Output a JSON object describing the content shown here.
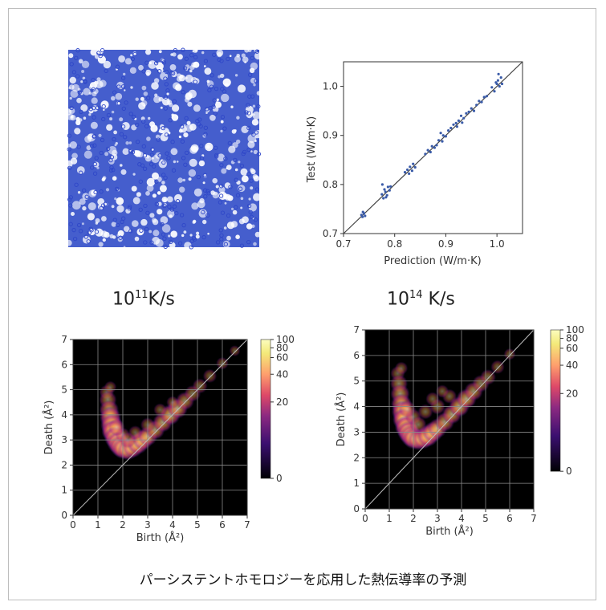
{
  "caption": "パーシステントホモロジーを応用した熱伝導率の予測",
  "rate_labels": [
    {
      "mantissa": "10",
      "exponent": "11",
      "unit": "K/s"
    },
    {
      "mantissa": "10",
      "exponent": "14",
      "unit": " K/s"
    }
  ],
  "colors": {
    "structure_blue": "#2f47c8",
    "scatter_point": "#3a5ba8",
    "heatmap_background": "#000000",
    "grid": "#8a8a8a"
  },
  "chart_data": [
    {
      "type": "scatter",
      "title": "",
      "xlabel": "Prediction (W/m·K)",
      "ylabel": "Test (W/m·K)",
      "xlim": [
        0.7,
        1.05
      ],
      "ylim": [
        0.7,
        1.05
      ],
      "xticks": [
        "0.7",
        "0.8",
        "0.9",
        "1.0"
      ],
      "yticks": [
        "0.7",
        "0.8",
        "0.9",
        "1.0"
      ],
      "reference_line": "y = x",
      "points": [
        [
          0.735,
          0.738
        ],
        [
          0.737,
          0.734
        ],
        [
          0.74,
          0.741
        ],
        [
          0.742,
          0.736
        ],
        [
          0.738,
          0.744
        ],
        [
          0.775,
          0.78
        ],
        [
          0.778,
          0.772
        ],
        [
          0.78,
          0.79
        ],
        [
          0.782,
          0.785
        ],
        [
          0.785,
          0.778
        ],
        [
          0.787,
          0.795
        ],
        [
          0.79,
          0.788
        ],
        [
          0.776,
          0.8
        ],
        [
          0.792,
          0.796
        ],
        [
          0.783,
          0.774
        ],
        [
          0.82,
          0.825
        ],
        [
          0.825,
          0.83
        ],
        [
          0.828,
          0.822
        ],
        [
          0.83,
          0.836
        ],
        [
          0.834,
          0.828
        ],
        [
          0.836,
          0.842
        ],
        [
          0.84,
          0.835
        ],
        [
          0.86,
          0.862
        ],
        [
          0.865,
          0.87
        ],
        [
          0.87,
          0.866
        ],
        [
          0.873,
          0.878
        ],
        [
          0.878,
          0.875
        ],
        [
          0.882,
          0.88
        ],
        [
          0.886,
          0.89
        ],
        [
          0.89,
          0.905
        ],
        [
          0.893,
          0.888
        ],
        [
          0.895,
          0.9
        ],
        [
          0.9,
          0.898
        ],
        [
          0.905,
          0.91
        ],
        [
          0.91,
          0.915
        ],
        [
          0.915,
          0.922
        ],
        [
          0.92,
          0.925
        ],
        [
          0.922,
          0.918
        ],
        [
          0.925,
          0.93
        ],
        [
          0.93,
          0.94
        ],
        [
          0.932,
          0.926
        ],
        [
          0.935,
          0.935
        ],
        [
          0.94,
          0.945
        ],
        [
          0.945,
          0.948
        ],
        [
          0.95,
          0.955
        ],
        [
          0.955,
          0.95
        ],
        [
          0.96,
          0.962
        ],
        [
          0.965,
          0.97
        ],
        [
          0.97,
          0.968
        ],
        [
          0.975,
          0.978
        ],
        [
          0.98,
          0.98
        ],
        [
          0.99,
          0.998
        ],
        [
          0.995,
          0.99
        ],
        [
          1.0,
          1.005
        ],
        [
          1.002,
          1.012
        ],
        [
          1.005,
          1.0
        ],
        [
          1.008,
          1.018
        ],
        [
          1.01,
          1.005
        ],
        [
          1.003,
          1.025
        ],
        [
          0.998,
          1.008
        ]
      ]
    },
    {
      "type": "heatmap",
      "title": "",
      "xlabel": "Birth (Å²)",
      "ylabel": "Death (Å²)",
      "xlim": [
        0,
        7
      ],
      "ylim": [
        0,
        7
      ],
      "xticks": [
        "0",
        "1",
        "2",
        "3",
        "4",
        "5",
        "6",
        "7"
      ],
      "yticks": [
        "0",
        "1",
        "2",
        "3",
        "4",
        "5",
        "6",
        "7"
      ],
      "colorbar_ticks": [
        "0",
        "20",
        "40",
        "60",
        "80",
        "100"
      ],
      "colorbar_scale": "log",
      "grid": true,
      "diagonal_line": "y = x",
      "density_bins": [
        [
          1.35,
          4.9,
          10
        ],
        [
          1.4,
          4.6,
          25
        ],
        [
          1.45,
          4.2,
          45
        ],
        [
          1.5,
          3.9,
          70
        ],
        [
          1.55,
          3.6,
          90
        ],
        [
          1.6,
          3.35,
          100
        ],
        [
          1.7,
          3.1,
          95
        ],
        [
          1.8,
          2.9,
          85
        ],
        [
          1.9,
          2.75,
          70
        ],
        [
          2.0,
          2.65,
          60
        ],
        [
          2.2,
          2.6,
          55
        ],
        [
          2.4,
          2.7,
          60
        ],
        [
          2.6,
          2.85,
          70
        ],
        [
          2.8,
          3.0,
          55
        ],
        [
          3.0,
          3.15,
          45
        ],
        [
          3.3,
          3.4,
          40
        ],
        [
          3.6,
          3.7,
          45
        ],
        [
          3.9,
          4.0,
          60
        ],
        [
          4.2,
          4.25,
          50
        ],
        [
          4.5,
          4.55,
          30
        ],
        [
          4.8,
          4.85,
          18
        ],
        [
          5.1,
          5.15,
          12
        ],
        [
          5.5,
          5.55,
          8
        ],
        [
          6.0,
          6.05,
          5
        ],
        [
          6.5,
          6.55,
          3
        ],
        [
          1.5,
          5.1,
          5
        ],
        [
          2.0,
          3.2,
          10
        ],
        [
          2.5,
          3.3,
          8
        ],
        [
          3.0,
          3.6,
          10
        ],
        [
          3.5,
          4.2,
          6
        ],
        [
          4.0,
          4.5,
          5
        ],
        [
          2.2,
          3.0,
          15
        ],
        [
          1.75,
          3.5,
          20
        ]
      ]
    },
    {
      "type": "heatmap",
      "title": "",
      "xlabel": "Birth (Å²)",
      "ylabel": "Death (Å²)",
      "xlim": [
        0,
        7
      ],
      "ylim": [
        0,
        7
      ],
      "xticks": [
        "0",
        "1",
        "2",
        "3",
        "4",
        "5",
        "6",
        "7"
      ],
      "yticks": [
        "0",
        "1",
        "2",
        "3",
        "4",
        "5",
        "6",
        "7"
      ],
      "colorbar_ticks": [
        "0",
        "20",
        "40",
        "60",
        "80",
        "100"
      ],
      "colorbar_scale": "log",
      "grid": true,
      "diagonal_line": "y = x",
      "density_bins": [
        [
          1.35,
          5.3,
          10
        ],
        [
          1.4,
          4.9,
          25
        ],
        [
          1.45,
          4.5,
          40
        ],
        [
          1.5,
          4.1,
          60
        ],
        [
          1.55,
          3.8,
          80
        ],
        [
          1.6,
          3.5,
          95
        ],
        [
          1.7,
          3.2,
          100
        ],
        [
          1.8,
          3.0,
          90
        ],
        [
          1.9,
          2.85,
          75
        ],
        [
          2.0,
          2.75,
          65
        ],
        [
          2.2,
          2.7,
          60
        ],
        [
          2.4,
          2.75,
          65
        ],
        [
          2.6,
          2.85,
          75
        ],
        [
          2.8,
          3.0,
          60
        ],
        [
          3.0,
          3.15,
          45
        ],
        [
          3.3,
          3.4,
          40
        ],
        [
          3.6,
          3.7,
          45
        ],
        [
          3.9,
          4.0,
          55
        ],
        [
          4.2,
          4.3,
          50
        ],
        [
          4.5,
          4.6,
          35
        ],
        [
          4.8,
          4.9,
          22
        ],
        [
          5.1,
          5.15,
          14
        ],
        [
          5.5,
          5.55,
          8
        ],
        [
          6.0,
          6.05,
          4
        ],
        [
          1.5,
          5.5,
          6
        ],
        [
          2.0,
          3.6,
          15
        ],
        [
          2.5,
          3.8,
          12
        ],
        [
          3.0,
          4.0,
          14
        ],
        [
          3.5,
          4.4,
          10
        ],
        [
          2.2,
          3.3,
          18
        ],
        [
          1.75,
          3.9,
          22
        ],
        [
          2.8,
          4.3,
          8
        ],
        [
          3.2,
          4.6,
          6
        ]
      ]
    }
  ]
}
